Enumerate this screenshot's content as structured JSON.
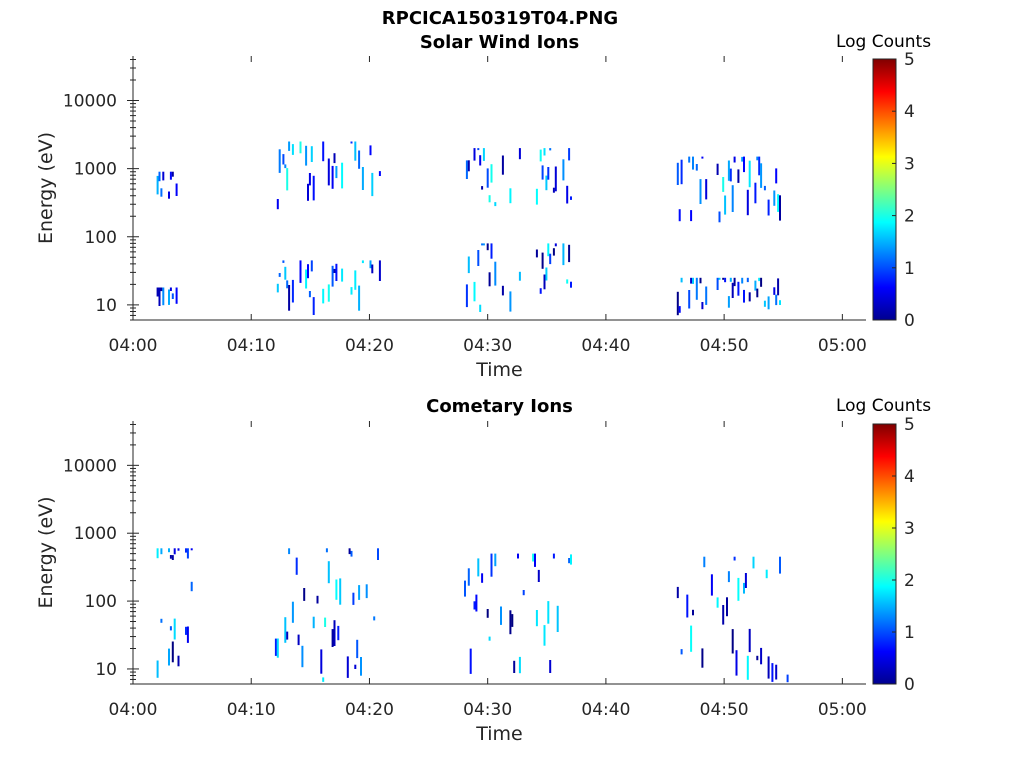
{
  "figure_title": "RPCICA150319T04.PNG",
  "colors": {
    "axis": "#262626",
    "background": "#ffffff"
  },
  "colormap": "jet",
  "chart_data": [
    {
      "type": "heatmap",
      "title": "Solar Wind Ions",
      "xlabel": "Time",
      "ylabel": "Energy (eV)",
      "y_scale": "log",
      "ylim": [
        6,
        45000
      ],
      "xlim": [
        "04:00",
        "05:02"
      ],
      "x_ticks": [
        "04:00",
        "04:10",
        "04:20",
        "04:30",
        "04:40",
        "04:50",
        "05:00"
      ],
      "y_ticks": [
        "10",
        "100",
        "1000",
        "10000"
      ],
      "colorbar": {
        "label": "Log Counts",
        "range": [
          0,
          5
        ],
        "ticks": [
          "0",
          "1",
          "2",
          "3",
          "4",
          "5"
        ]
      },
      "bursts": [
        {
          "start": "04:02",
          "end": "04:04",
          "energy_ranges": [
            [
              300,
              900
            ],
            [
              7,
              18
            ]
          ],
          "log_counts_max": 1.5
        },
        {
          "start": "04:12",
          "end": "04:21",
          "energy_ranges": [
            [
              250,
              2500
            ],
            [
              7,
              45
            ]
          ],
          "log_counts_max": 2.0
        },
        {
          "start": "04:28",
          "end": "04:37",
          "energy_ranges": [
            [
              250,
              2000
            ],
            [
              7,
              80
            ]
          ],
          "log_counts_max": 2.0
        },
        {
          "start": "04:46",
          "end": "04:55",
          "energy_ranges": [
            [
              160,
              1500
            ],
            [
              7,
              25
            ]
          ],
          "log_counts_max": 2.0
        }
      ]
    },
    {
      "type": "heatmap",
      "title": "Cometary Ions",
      "xlabel": "Time",
      "ylabel": "Energy (eV)",
      "y_scale": "log",
      "ylim": [
        6,
        45000
      ],
      "xlim": [
        "04:00",
        "05:02"
      ],
      "x_ticks": [
        "04:00",
        "04:10",
        "04:20",
        "04:30",
        "04:40",
        "04:50",
        "05:00"
      ],
      "y_ticks": [
        "10",
        "100",
        "1000",
        "10000"
      ],
      "colorbar": {
        "label": "Log Counts",
        "range": [
          0,
          5
        ],
        "ticks": [
          "0",
          "1",
          "2",
          "3",
          "4",
          "5"
        ]
      },
      "bursts": [
        {
          "start": "04:02",
          "end": "04:05",
          "energy_ranges": [
            [
              6,
              200
            ],
            [
              400,
              600
            ]
          ],
          "log_counts_max": 2.0
        },
        {
          "start": "04:12",
          "end": "04:21",
          "energy_ranges": [
            [
              6,
              600
            ]
          ],
          "log_counts_max": 2.0
        },
        {
          "start": "04:28",
          "end": "04:37",
          "energy_ranges": [
            [
              6,
              500
            ]
          ],
          "log_counts_max": 2.0
        },
        {
          "start": "04:46",
          "end": "04:56",
          "energy_ranges": [
            [
              6,
              450
            ]
          ],
          "log_counts_max": 2.0
        }
      ]
    }
  ]
}
